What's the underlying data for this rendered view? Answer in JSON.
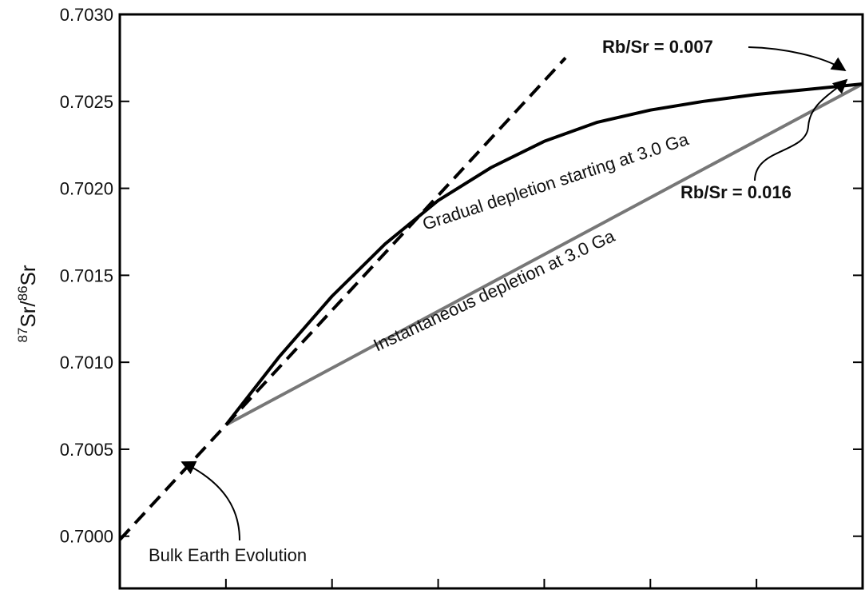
{
  "chart_data": {
    "type": "line",
    "ylabel": {
      "sup1": "87",
      "base1": "Sr/",
      "sup2": "86",
      "base2": "Sr"
    },
    "xlim": [
      0,
      7
    ],
    "ylim": [
      0.6997,
      0.703
    ],
    "yticks": [
      "0.7000",
      "0.7005",
      "0.7010",
      "0.7015",
      "0.7020",
      "0.7025",
      "0.7030"
    ],
    "ytick_values": [
      0.7,
      0.7005,
      0.701,
      0.7015,
      0.702,
      0.7025,
      0.703
    ],
    "xtick_values": [
      1,
      2,
      3,
      4,
      5,
      6
    ],
    "series": [
      {
        "key": "bulk",
        "style": "dashed",
        "color": "#000000",
        "x": [
          0.0,
          4.2
        ],
        "y": [
          0.69998,
          0.70275
        ]
      },
      {
        "key": "gradual",
        "style": "solid",
        "color": "#000000",
        "x": [
          1.0,
          1.5,
          2.0,
          2.5,
          3.0,
          3.5,
          4.0,
          4.5,
          5.0,
          5.5,
          6.0,
          6.5,
          7.0
        ],
        "y": [
          0.70064,
          0.70103,
          0.70138,
          0.70168,
          0.70193,
          0.70212,
          0.70227,
          0.70238,
          0.70245,
          0.7025,
          0.70254,
          0.70257,
          0.7026
        ]
      },
      {
        "key": "instant",
        "style": "solid",
        "color": "#777777",
        "x": [
          1.0,
          7.0
        ],
        "y": [
          0.70064,
          0.7026
        ]
      }
    ],
    "annotations": {
      "gradual": "Gradual depletion starting at 3.0 Ga",
      "instant": "Instantaneous depletion at 3.0 Ga",
      "rb007": "Rb/Sr = 0.007",
      "rb016": "Rb/Sr = 0.016",
      "bulk": "Bulk Earth Evolution"
    }
  }
}
